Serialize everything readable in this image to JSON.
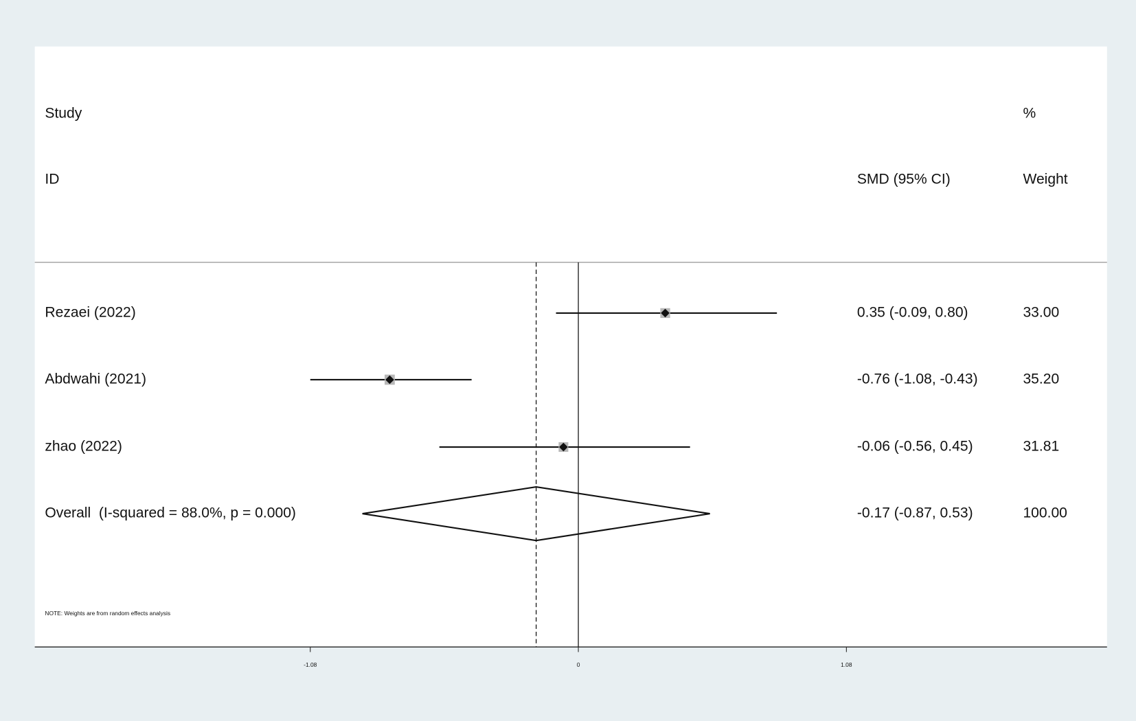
{
  "chart_data": {
    "type": "forest",
    "headers": {
      "study": "Study",
      "id": "ID",
      "effect": "SMD (95% CI)",
      "percent": "%",
      "weight": "Weight"
    },
    "studies": [
      "Rezaei (2022)",
      "Abdwahi (2021)",
      "zhao (2022)"
    ],
    "values": [
      0.35,
      -0.76,
      -0.06
    ],
    "lower": [
      -0.09,
      -1.08,
      -0.56
    ],
    "upper": [
      0.8,
      -0.43,
      0.45
    ],
    "value_labels": [
      "0.35 (-0.09, 0.80)",
      "-0.76 (-1.08, -0.43)",
      "-0.06 (-0.56, 0.45)"
    ],
    "weights": [
      33.0,
      35.2,
      31.81
    ],
    "weight_labels": [
      "33.00",
      "35.20",
      "31.81"
    ],
    "overall": {
      "label": "Overall  (I-squared = 88.0%, p = 0.000)",
      "value": -0.17,
      "lower": -0.87,
      "upper": 0.53,
      "value_label": "-0.17 (-0.87, 0.53)",
      "weight": 100.0,
      "weight_label": "100.00"
    },
    "note": "NOTE: Weights are from random effects analysis",
    "xlim": [
      -2.19,
      2.13
    ],
    "xticks": [
      -1.08,
      0,
      1.08
    ]
  }
}
